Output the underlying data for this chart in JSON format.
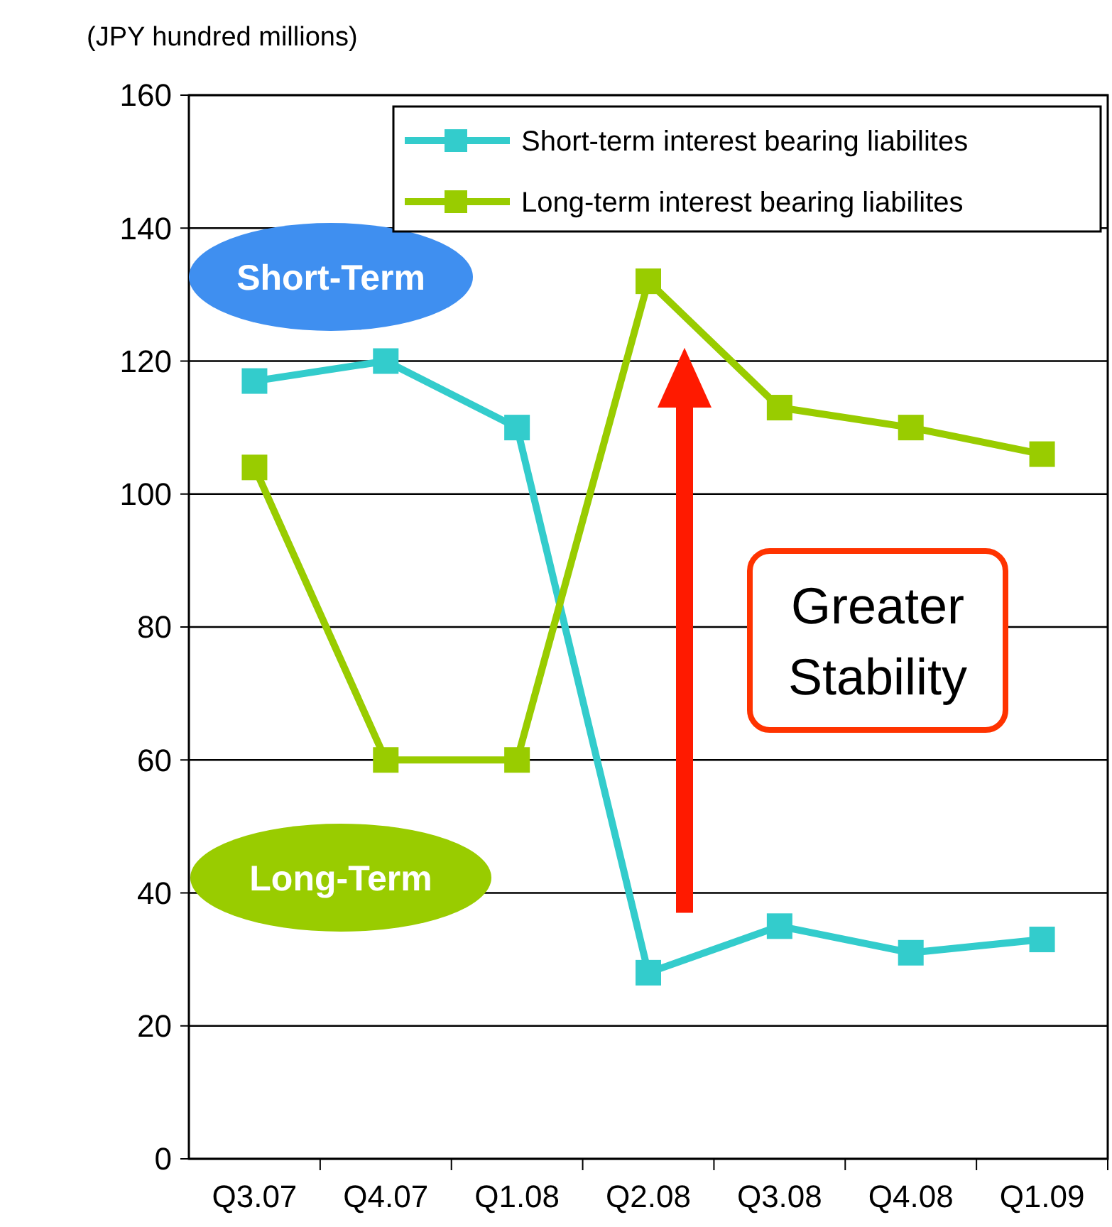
{
  "chart_data": {
    "type": "line",
    "ylabel": "(JPY hundred millions)",
    "categories": [
      "Q3.07",
      "Q4.07",
      "Q1.08",
      "Q2.08",
      "Q3.08",
      "Q4.08",
      "Q1.09"
    ],
    "series": [
      {
        "name": "Short-term interest bearing liabilites",
        "color": "#33cccc",
        "values": [
          117,
          120,
          110,
          28,
          35,
          31,
          33
        ]
      },
      {
        "name": "Long-term interest bearing liabilites",
        "color": "#99cc00",
        "values": [
          104,
          60,
          60,
          132,
          113,
          110,
          106
        ]
      }
    ],
    "ylim": [
      0,
      160
    ],
    "yticks": [
      0,
      20,
      40,
      60,
      80,
      100,
      120,
      140,
      160
    ],
    "grid": "y",
    "legend": "top right",
    "marker": "square",
    "line_style": "solid",
    "annotations": [
      "Short-Term",
      "Long-Term",
      "Greater Stability"
    ]
  }
}
